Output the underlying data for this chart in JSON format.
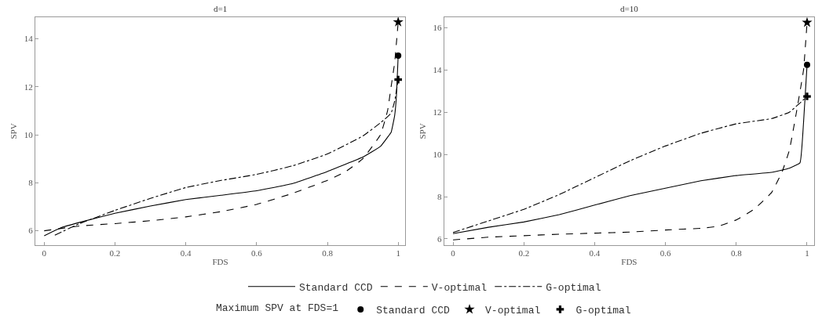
{
  "chart_data": [
    {
      "type": "line",
      "title": "d=1",
      "xlabel": "FDS",
      "ylabel": "SPV",
      "xlim": [
        -0.025,
        1.02
      ],
      "ylim": [
        5.4,
        14.9
      ],
      "xticks": [
        0,
        0.2,
        0.4,
        0.6,
        0.8,
        1
      ],
      "yticks": [
        6,
        8,
        10,
        12,
        14
      ],
      "grid": false,
      "legend": "bottom",
      "legend_title": "Maximum SPV at FDS=1",
      "series": [
        {
          "name": "Standard CCD",
          "color": "#000000",
          "line_style": "solid",
          "x": [
            0,
            0.05,
            0.1,
            0.2,
            0.3,
            0.4,
            0.5,
            0.6,
            0.7,
            0.8,
            0.9,
            0.95,
            0.97,
            0.98,
            0.99,
            0.995,
            1
          ],
          "values": [
            5.79,
            6.14,
            6.35,
            6.73,
            7.03,
            7.3,
            7.48,
            7.67,
            7.96,
            8.47,
            9.07,
            9.52,
            9.9,
            10.1,
            10.8,
            11.6,
            13.3
          ]
        },
        {
          "name": "V-optimal",
          "color": "#000000",
          "line_style": "dashed",
          "x": [
            0,
            0.1,
            0.2,
            0.3,
            0.4,
            0.5,
            0.6,
            0.7,
            0.8,
            0.85,
            0.9,
            0.95,
            0.97,
            0.98,
            0.99,
            1
          ],
          "values": [
            6.0,
            6.2,
            6.3,
            6.42,
            6.58,
            6.8,
            7.1,
            7.55,
            8.1,
            8.45,
            9.0,
            10.0,
            11.0,
            12.0,
            13.0,
            14.7
          ]
        },
        {
          "name": "G-optimal",
          "color": "#000000",
          "line_style": "dashdot",
          "x": [
            0.03,
            0.1,
            0.2,
            0.3,
            0.4,
            0.5,
            0.6,
            0.7,
            0.8,
            0.9,
            0.95,
            0.98,
            0.99,
            1
          ],
          "values": [
            5.82,
            6.3,
            6.85,
            7.35,
            7.8,
            8.1,
            8.35,
            8.7,
            9.2,
            9.95,
            10.5,
            10.9,
            11.4,
            12.3
          ]
        },
        {
          "name": "Standard CCD",
          "type": "scatter",
          "marker": "circle",
          "color": "#000000",
          "x": [
            1
          ],
          "values": [
            13.3
          ]
        },
        {
          "name": "V-optimal",
          "type": "scatter",
          "marker": "star",
          "color": "#000000",
          "x": [
            1
          ],
          "values": [
            14.7
          ]
        },
        {
          "name": "G-optimal",
          "type": "scatter",
          "marker": "cross",
          "color": "#000000",
          "x": [
            1
          ],
          "values": [
            12.3
          ]
        }
      ]
    },
    {
      "type": "line",
      "title": "d=10",
      "xlabel": "FDS",
      "ylabel": "SPV",
      "xlim": [
        -0.025,
        1.02
      ],
      "ylim": [
        5.7,
        16.5
      ],
      "xticks": [
        0,
        0.2,
        0.4,
        0.6,
        0.8,
        1
      ],
      "yticks": [
        6,
        8,
        10,
        12,
        14,
        16
      ],
      "grid": false,
      "legend": "bottom",
      "series": [
        {
          "name": "Standard CCD",
          "color": "#000000",
          "line_style": "solid",
          "x": [
            0,
            0.1,
            0.2,
            0.3,
            0.4,
            0.5,
            0.6,
            0.7,
            0.8,
            0.9,
            0.95,
            0.98,
            0.99,
            1
          ],
          "values": [
            6.25,
            6.55,
            6.8,
            7.15,
            7.6,
            8.05,
            8.4,
            8.75,
            9.0,
            9.15,
            9.35,
            9.6,
            11.5,
            14.25
          ]
        },
        {
          "name": "V-optimal",
          "color": "#000000",
          "line_style": "dashed",
          "x": [
            0,
            0.1,
            0.2,
            0.3,
            0.4,
            0.5,
            0.6,
            0.7,
            0.75,
            0.8,
            0.85,
            0.9,
            0.93,
            0.95,
            0.97,
            0.99,
            1
          ],
          "values": [
            5.95,
            6.08,
            6.15,
            6.22,
            6.27,
            6.32,
            6.42,
            6.5,
            6.6,
            6.9,
            7.4,
            8.2,
            9.2,
            10.2,
            12.0,
            14.0,
            16.25
          ]
        },
        {
          "name": "G-optimal",
          "color": "#000000",
          "line_style": "dashdot",
          "x": [
            0,
            0.1,
            0.2,
            0.3,
            0.4,
            0.5,
            0.6,
            0.7,
            0.8,
            0.9,
            0.95,
            1
          ],
          "values": [
            6.3,
            6.85,
            7.4,
            8.1,
            8.9,
            9.7,
            10.4,
            11.0,
            11.45,
            11.7,
            12.0,
            12.75
          ]
        },
        {
          "name": "Standard CCD",
          "type": "scatter",
          "marker": "circle",
          "color": "#000000",
          "x": [
            1
          ],
          "values": [
            14.25
          ]
        },
        {
          "name": "V-optimal",
          "type": "scatter",
          "marker": "star",
          "color": "#000000",
          "x": [
            1
          ],
          "values": [
            16.25
          ]
        },
        {
          "name": "G-optimal",
          "type": "scatter",
          "marker": "cross",
          "color": "#000000",
          "x": [
            1
          ],
          "values": [
            12.75
          ]
        }
      ]
    }
  ]
}
